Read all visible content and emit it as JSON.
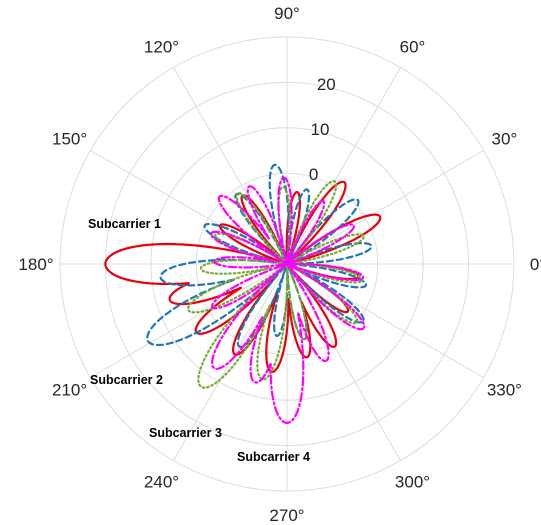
{
  "chart_data": {
    "type": "polar-line",
    "title": "",
    "theta_tick_labels": [
      "0°",
      "30°",
      "60°",
      "90°",
      "120°",
      "150°",
      "180°",
      "210°",
      "240°",
      "270°",
      "300°",
      "330°"
    ],
    "theta_ticks_deg": [
      0,
      30,
      60,
      90,
      120,
      150,
      180,
      210,
      240,
      270,
      300,
      330
    ],
    "r_tick_labels": [
      "0",
      "10",
      "20"
    ],
    "r_ticks": [
      0,
      10,
      20
    ],
    "r_lim": [
      -20,
      30
    ],
    "grid": true,
    "series": [
      {
        "annotation": "Subcarrier 1",
        "color": "#e8000b",
        "style": "solid",
        "lobes": [
          {
            "angle": 180,
            "peak": 20
          },
          {
            "angle": 197,
            "peak": 7
          },
          {
            "angle": 217,
            "peak": 5
          },
          {
            "angle": 240,
            "peak": 3
          },
          {
            "angle": 262,
            "peak": 4
          },
          {
            "angle": 282,
            "peak": 1
          },
          {
            "angle": 300,
            "peak": 1
          },
          {
            "angle": 322,
            "peak": -3
          },
          {
            "angle": 350,
            "peak": -4
          },
          {
            "angle": 27,
            "peak": 3
          },
          {
            "angle": 55,
            "peak": 2
          },
          {
            "angle": 82,
            "peak": -4
          },
          {
            "angle": 123,
            "peak": -2
          },
          {
            "angle": 150,
            "peak": -3
          }
        ]
      },
      {
        "annotation": "Subcarrier 2",
        "color": "#1f77b4",
        "style": "dashed",
        "lobes": [
          {
            "angle": 186,
            "peak": 8
          },
          {
            "angle": 209,
            "peak": 15
          },
          {
            "angle": 240,
            "peak": 1
          },
          {
            "angle": 262,
            "peak": -4
          },
          {
            "angle": 283,
            "peak": -3
          },
          {
            "angle": 323,
            "peak": 1
          },
          {
            "angle": 345,
            "peak": -2
          },
          {
            "angle": 12,
            "peak": -1
          },
          {
            "angle": 42,
            "peak": 1
          },
          {
            "angle": 75,
            "peak": -3
          },
          {
            "angle": 97,
            "peak": 2
          },
          {
            "angle": 126,
            "peak": -1
          },
          {
            "angle": 155,
            "peak": 0
          }
        ]
      },
      {
        "annotation": "Subcarrier 3",
        "color": "#77ac30",
        "style": "dotted",
        "lobes": [
          {
            "angle": 205,
            "peak": 4
          },
          {
            "angle": 235,
            "peak": 13
          },
          {
            "angle": 258,
            "peak": 6
          },
          {
            "angle": 283,
            "peak": -3
          },
          {
            "angle": 320,
            "peak": 0
          },
          {
            "angle": 348,
            "peak": -3
          },
          {
            "angle": 20,
            "peak": -2
          },
          {
            "angle": 60,
            "peak": 1
          },
          {
            "angle": 93,
            "peak": -3
          },
          {
            "angle": 125,
            "peak": -1
          },
          {
            "angle": 158,
            "peak": -3
          },
          {
            "angle": 183,
            "peak": -1
          }
        ]
      },
      {
        "annotation": "Subcarrier 4",
        "color": "#ff00ff",
        "style": "dashdot",
        "lobes": [
          {
            "angle": 178,
            "peak": -4
          },
          {
            "angle": 210,
            "peak": -1
          },
          {
            "angle": 235,
            "peak": 8
          },
          {
            "angle": 255,
            "peak": 7
          },
          {
            "angle": 270,
            "peak": 15
          },
          {
            "angle": 292,
            "peak": 3
          },
          {
            "angle": 320,
            "peak": 2
          },
          {
            "angle": 350,
            "peak": -3
          },
          {
            "angle": 30,
            "peak": -3
          },
          {
            "angle": 60,
            "peak": -4
          },
          {
            "angle": 92,
            "peak": -1
          },
          {
            "angle": 116,
            "peak": -1
          },
          {
            "angle": 135,
            "peak": 1
          },
          {
            "angle": 158,
            "peak": -2
          }
        ]
      }
    ]
  }
}
